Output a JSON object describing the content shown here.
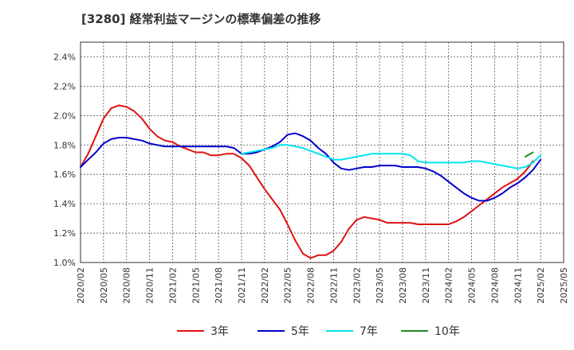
{
  "title": "[3280]  経常利益マージンの標準偏差の推移",
  "chart_data": {
    "type": "line",
    "title": "[3280]  経常利益マージンの標準偏差の推移",
    "xlabel": "",
    "ylabel": "",
    "ylim": [
      1.0,
      2.5
    ],
    "y_ticks": [
      "1.0%",
      "1.2%",
      "1.4%",
      "1.6%",
      "1.8%",
      "2.0%",
      "2.2%",
      "2.4%"
    ],
    "x_ticks": [
      "2020/02",
      "2020/05",
      "2020/08",
      "2020/11",
      "2021/02",
      "2021/05",
      "2021/08",
      "2021/11",
      "2022/02",
      "2022/05",
      "2022/08",
      "2022/11",
      "2023/02",
      "2023/05",
      "2023/08",
      "2023/11",
      "2024/02",
      "2024/05",
      "2024/08",
      "2024/11",
      "2025/02",
      "2025/05"
    ],
    "grid": true,
    "legend_position": "bottom",
    "series": [
      {
        "name": "3年",
        "color": "#e01010",
        "start": "2020/02",
        "values": [
          1.65,
          1.74,
          1.86,
          1.98,
          2.05,
          2.07,
          2.06,
          2.03,
          1.98,
          1.91,
          1.86,
          1.83,
          1.82,
          1.79,
          1.77,
          1.75,
          1.75,
          1.73,
          1.73,
          1.74,
          1.74,
          1.71,
          1.66,
          1.58,
          1.5,
          1.43,
          1.36,
          1.26,
          1.15,
          1.06,
          1.03,
          1.05,
          1.05,
          1.08,
          1.14,
          1.23,
          1.29,
          1.31,
          1.3,
          1.29,
          1.27,
          1.27,
          1.27,
          1.27,
          1.26,
          1.26,
          1.26,
          1.26,
          1.26,
          1.28,
          1.31,
          1.35,
          1.39,
          1.43,
          1.47,
          1.51,
          1.54,
          1.57,
          1.62,
          1.69
        ]
      },
      {
        "name": "5年",
        "color": "#0000cc",
        "start": "2020/02",
        "values": [
          1.65,
          1.7,
          1.75,
          1.81,
          1.84,
          1.85,
          1.85,
          1.84,
          1.83,
          1.81,
          1.8,
          1.79,
          1.79,
          1.79,
          1.79,
          1.79,
          1.79,
          1.79,
          1.79,
          1.79,
          1.78,
          1.74,
          1.74,
          1.75,
          1.77,
          1.79,
          1.82,
          1.87,
          1.88,
          1.86,
          1.83,
          1.78,
          1.74,
          1.68,
          1.64,
          1.63,
          1.64,
          1.65,
          1.65,
          1.66,
          1.66,
          1.66,
          1.65,
          1.65,
          1.65,
          1.64,
          1.62,
          1.59,
          1.55,
          1.51,
          1.47,
          1.44,
          1.42,
          1.42,
          1.44,
          1.47,
          1.51,
          1.54,
          1.58,
          1.63,
          1.7
        ]
      },
      {
        "name": "7年",
        "color": "#00e5ee",
        "start": "2021/11",
        "values": [
          1.74,
          1.75,
          1.76,
          1.77,
          1.78,
          1.8,
          1.8,
          1.79,
          1.78,
          1.76,
          1.74,
          1.72,
          1.7,
          1.7,
          1.71,
          1.72,
          1.73,
          1.74,
          1.74,
          1.74,
          1.74,
          1.74,
          1.73,
          1.69,
          1.68,
          1.68,
          1.68,
          1.68,
          1.68,
          1.68,
          1.69,
          1.69,
          1.68,
          1.67,
          1.66,
          1.65,
          1.64,
          1.65,
          1.68,
          1.73
        ]
      },
      {
        "name": "10年",
        "color": "#228b22",
        "start": "2024/12",
        "values": [
          1.72,
          1.75
        ]
      }
    ]
  }
}
